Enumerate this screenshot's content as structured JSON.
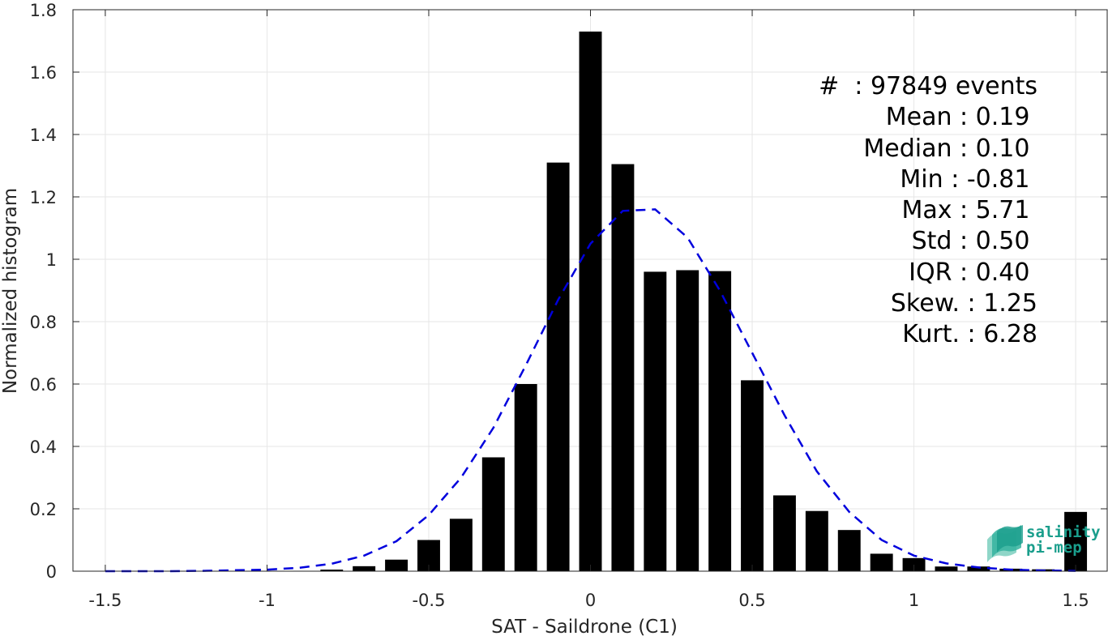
{
  "chart_data": {
    "type": "bar",
    "xlabel": "SAT - Saildrone (C1)",
    "ylabel": "Normalized histogram",
    "xlim": [
      -1.6,
      1.6
    ],
    "ylim": [
      0,
      1.8
    ],
    "xticks": [
      -1.5,
      -1,
      -0.5,
      0,
      0.5,
      1,
      1.5
    ],
    "xtick_labels": [
      "-1.5",
      "-1",
      "-0.5",
      "0",
      "0.5",
      "1",
      "1.5"
    ],
    "yticks": [
      0,
      0.2,
      0.4,
      0.6,
      0.8,
      1,
      1.2,
      1.4,
      1.6,
      1.8
    ],
    "ytick_labels": [
      "0",
      "0.2",
      "0.4",
      "0.6",
      "0.8",
      "1",
      "1.2",
      "1.4",
      "1.6",
      "1.8"
    ],
    "grid": true,
    "bar_width": 0.07,
    "bars": {
      "x": [
        -0.8,
        -0.7,
        -0.6,
        -0.5,
        -0.4,
        -0.3,
        -0.2,
        -0.1,
        0.0,
        0.1,
        0.2,
        0.3,
        0.4,
        0.5,
        0.6,
        0.7,
        0.8,
        0.9,
        1.0,
        1.1,
        1.2,
        1.3,
        1.4,
        1.5
      ],
      "values": [
        0.005,
        0.016,
        0.037,
        0.1,
        0.168,
        0.365,
        0.6,
        1.31,
        1.73,
        1.305,
        0.96,
        0.965,
        0.962,
        0.612,
        0.243,
        0.193,
        0.132,
        0.056,
        0.042,
        0.015,
        0.015,
        0.008,
        0.006,
        0.19
      ],
      "color": "#000000"
    },
    "fit_curve": {
      "style": "dashed",
      "color": "#0000dd",
      "x": [
        -1.5,
        -1.4,
        -1.3,
        -1.2,
        -1.1,
        -1.0,
        -0.9,
        -0.8,
        -0.7,
        -0.6,
        -0.5,
        -0.4,
        -0.3,
        -0.2,
        -0.1,
        0.0,
        0.1,
        0.2,
        0.3,
        0.4,
        0.5,
        0.6,
        0.7,
        0.8,
        0.9,
        1.0,
        1.1,
        1.2,
        1.3,
        1.4,
        1.5
      ],
      "y": [
        0.0,
        0.0,
        0.0,
        0.001,
        0.003,
        0.005,
        0.011,
        0.024,
        0.05,
        0.096,
        0.18,
        0.3,
        0.46,
        0.66,
        0.87,
        1.05,
        1.155,
        1.16,
        1.07,
        0.9,
        0.7,
        0.5,
        0.32,
        0.19,
        0.1,
        0.05,
        0.025,
        0.012,
        0.005,
        0.002,
        0.001
      ]
    },
    "annotations": [
      {
        "label": "#",
        "sep": ":",
        "value": "97849 events"
      },
      {
        "label": "Mean",
        "sep": ":",
        "value": "0.19"
      },
      {
        "label": "Median",
        "sep": ":",
        "value": "0.10"
      },
      {
        "label": "Min",
        "sep": ":",
        "value": "-0.81"
      },
      {
        "label": "Max",
        "sep": ":",
        "value": "5.71"
      },
      {
        "label": "Std",
        "sep": ":",
        "value": "0.50"
      },
      {
        "label": "IQR",
        "sep": ":",
        "value": "0.40"
      },
      {
        "label": "Skew.",
        "sep": ":",
        "value": "1.25"
      },
      {
        "label": "Kurt.",
        "sep": ":",
        "value": "6.28"
      }
    ]
  },
  "stats_text": [
    "#  : 97849 events",
    "Mean : 0.19 ",
    "Median : 0.10 ",
    "Min : -0.81 ",
    "Max : 5.71 ",
    "Std : 0.50 ",
    "IQR : 0.40 ",
    "Skew. : 1.25",
    "Kurt. : 6.28"
  ],
  "logo": {
    "line1": "salinity",
    "line2": "pi-mep",
    "color": "#1a9e8c"
  }
}
